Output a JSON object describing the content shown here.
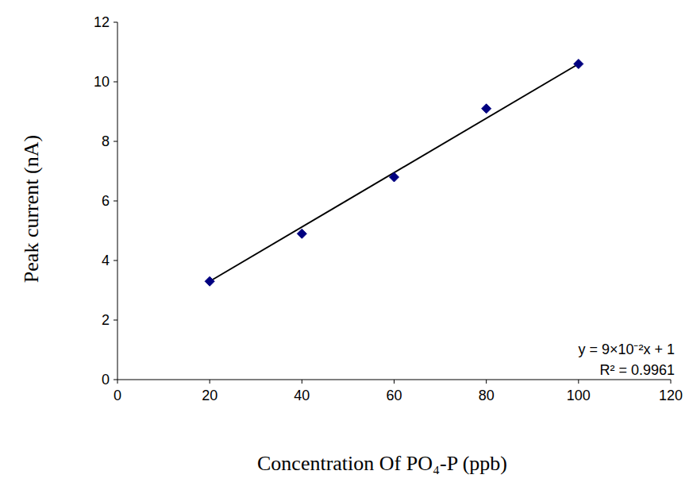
{
  "chart_data": {
    "type": "scatter",
    "x_label": "Concentration Of PO₄-P (ppb)",
    "y_label": "Peak current (nA)",
    "x": [
      20,
      40,
      60,
      80,
      100
    ],
    "values": [
      3.3,
      4.9,
      6.8,
      9.1,
      10.6
    ],
    "color": "#000080",
    "marker": "diamond",
    "trendline": {
      "x": [
        20,
        100
      ],
      "values": [
        3.3,
        10.6
      ],
      "color": "#000000"
    },
    "annotations": [
      "y = 9×10⁻²x + 1",
      "R² = 0.9961"
    ],
    "xlim": [
      0,
      120
    ],
    "xticks": [
      0,
      20,
      40,
      60,
      80,
      100,
      120
    ],
    "ylim": [
      0,
      12
    ],
    "yticks": [
      0,
      2,
      4,
      6,
      8,
      10,
      12
    ],
    "grid": false
  }
}
